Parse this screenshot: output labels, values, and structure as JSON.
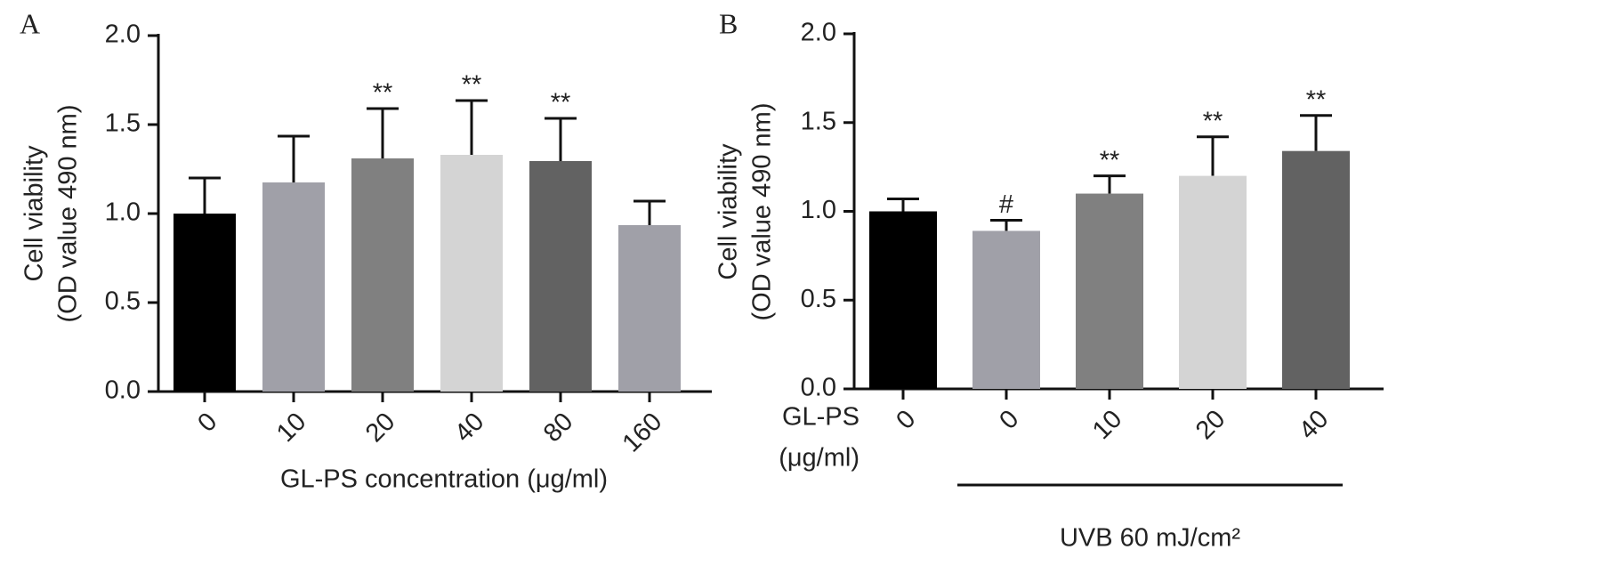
{
  "chart_data": [
    {
      "type": "bar",
      "panel_label": "A",
      "y_label": [
        "Cell viability",
        "(OD value 490 nm)"
      ],
      "x_label": "GL-PS concentration (μg/ml)",
      "categories": [
        "0",
        "10",
        "20",
        "40",
        "80",
        "160"
      ],
      "values": [
        1.0,
        1.175,
        1.31,
        1.33,
        1.295,
        0.935
      ],
      "errors": [
        0.2,
        0.26,
        0.28,
        0.305,
        0.24,
        0.135
      ],
      "colors": [
        "#000000",
        "#a0a0a8",
        "#808080",
        "#d4d4d4",
        "#626262",
        "#a0a0a8"
      ],
      "annotations": [
        null,
        null,
        "**",
        "**",
        "**",
        null
      ],
      "ylim": [
        0,
        2
      ],
      "yticks": [
        {
          "value": 0,
          "label": "0.0"
        },
        0.5,
        {
          "value": 1,
          "label": "1.0"
        },
        1.5,
        {
          "value": 2,
          "label": "2.0"
        }
      ]
    },
    {
      "type": "bar",
      "panel_label": "B",
      "y_label": [
        "Cell viability",
        "(OD value 490 nm)"
      ],
      "category_title": [
        "GL-PS",
        "(μg/ml)"
      ],
      "group_label": "UVB 60 mJ/cm²",
      "categories": [
        "0",
        "0",
        "10",
        "20",
        "40"
      ],
      "values": [
        1.0,
        0.89,
        1.1,
        1.2,
        1.34
      ],
      "errors": [
        0.07,
        0.06,
        0.1,
        0.22,
        0.2
      ],
      "colors": [
        "#000000",
        "#a0a0a8",
        "#808080",
        "#d4d4d4",
        "#626262"
      ],
      "annotations": [
        null,
        "#",
        "**",
        "**",
        "**"
      ],
      "ylim": [
        0,
        2
      ],
      "yticks": [
        {
          "value": 0,
          "label": "0.0"
        },
        0.5,
        {
          "value": 1,
          "label": "1.0"
        },
        1.5,
        {
          "value": 2,
          "label": "2.0"
        }
      ]
    }
  ]
}
